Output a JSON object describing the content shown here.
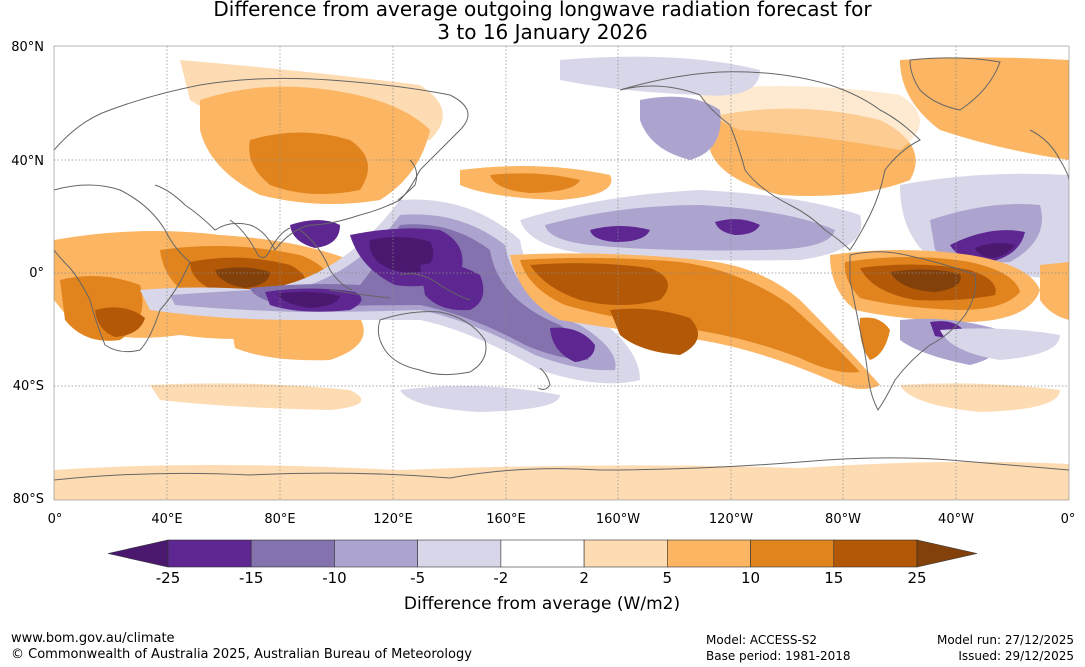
{
  "title": {
    "line1": "Difference from average outgoing longwave radiation forecast for",
    "line2": "3 to 16 January 2026"
  },
  "lat_labels": [
    "80°N",
    "40°N",
    "0°",
    "40°S",
    "80°S"
  ],
  "lon_labels": [
    "0°",
    "40°E",
    "80°E",
    "120°E",
    "160°E",
    "160°W",
    "120°W",
    "80°W",
    "40°W",
    "0°"
  ],
  "colorbar": {
    "ticks": [
      "-25",
      "-15",
      "-10",
      "-5",
      "-2",
      "2",
      "5",
      "10",
      "15",
      "25"
    ],
    "colors": [
      "#4b1870",
      "#5d2690",
      "#8372ae",
      "#aca4cf",
      "#d8d6e9",
      "#ffffff",
      "#fddcb3",
      "#fbb563",
      "#e1841e",
      "#b35807",
      "#82410a"
    ],
    "label": "Difference from average (W/m2)"
  },
  "footer": {
    "url": "www.bom.gov.au/climate",
    "copyright": "© Commonwealth of Australia 2025, Australian Bureau of Meteorology",
    "model": "Model: ACCESS-S2",
    "base_period": "Base period: 1981-2018",
    "model_run": "Model run: 27/12/2025",
    "issued": "Issued: 29/12/2025"
  }
}
